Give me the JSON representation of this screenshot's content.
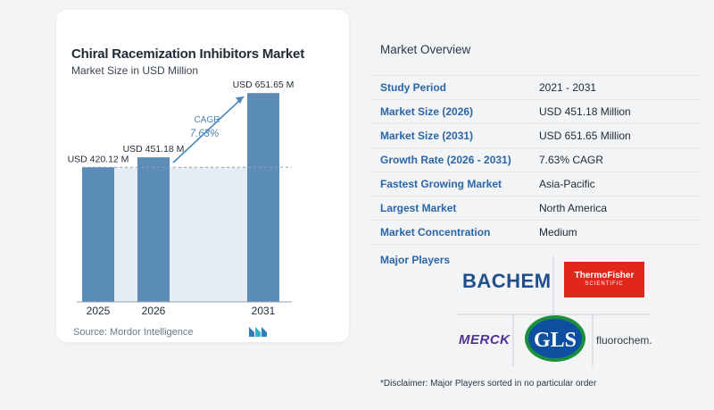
{
  "chart_data": {
    "type": "bar",
    "title": "Chiral Racemization Inhibitors Market",
    "subtitle": "Market Size in USD Million",
    "categories": [
      "2025",
      "2026",
      "2031"
    ],
    "values": [
      420.12,
      451.18,
      651.65
    ],
    "value_labels": [
      "USD 420.12 M",
      "USD 451.18 M",
      "USD 651.65 M"
    ],
    "ylim": [
      0,
      680
    ],
    "grid": false,
    "reference_line_value": 420.12,
    "annotation": {
      "label": "CAGR",
      "value": "7.63%"
    },
    "bar_color": "#5b8db8",
    "highlight_band_color": "#e4ecf4"
  },
  "source": "Source:  Mordor Intelligence",
  "overview": {
    "title": "Market Overview",
    "rows": [
      {
        "label": "Study Period",
        "value": "2021 - 2031"
      },
      {
        "label": "Market Size (2026)",
        "value": "USD 451.18 Million"
      },
      {
        "label": "Market Size (2031)",
        "value": "USD 651.65 Million"
      },
      {
        "label": "Growth Rate (2026 - 2031)",
        "value": "7.63% CAGR"
      },
      {
        "label": "Fastest Growing Market",
        "value": "Asia-Pacific"
      },
      {
        "label": "Largest Market",
        "value": "North America"
      },
      {
        "label": "Market Concentration",
        "value": "Medium"
      }
    ]
  },
  "players": {
    "label": "Major Players",
    "logos": [
      {
        "name": "BACHEM"
      },
      {
        "name": "ThermoFisher",
        "sub": "SCIENTIFIC"
      },
      {
        "name": "MERCK"
      },
      {
        "name": "GLS"
      },
      {
        "name": "fluorochem."
      }
    ]
  },
  "disclaimer": "*Disclaimer: Major Players sorted in no particular order"
}
